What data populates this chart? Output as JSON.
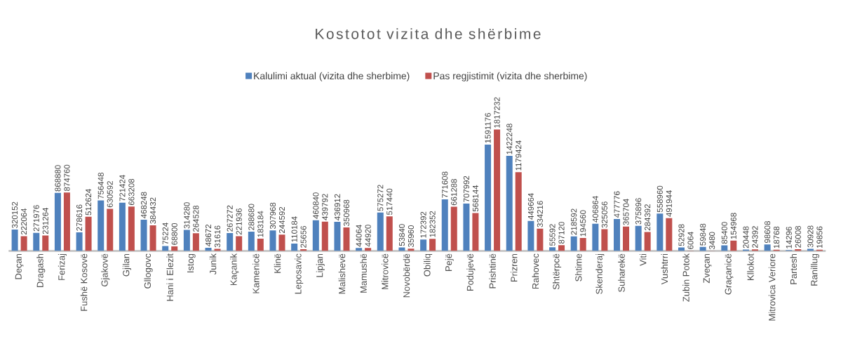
{
  "chart_data": {
    "type": "bar",
    "title": "Kostotot vizita dhe shërbime",
    "categories": [
      "Deçan",
      "Dragash",
      "Ferizaj",
      "Fushë Kosovë",
      "Gjakovë",
      "Gjilan",
      "Gllogovc",
      "Hani i Elezit",
      "Istog",
      "Junik",
      "Kaçanik",
      "Kamenicë",
      "Klinë",
      "Leposavic",
      "Lipjan",
      "Malishevë",
      "Mamushë",
      "Mitrovicë",
      "Novobërdë",
      "Obiliq",
      "Pejë",
      "Podujevë",
      "Prishtinë",
      "Prizren",
      "Rahovec",
      "Shtërpcë",
      "Shtime",
      "Skenderaj",
      "Suharekë",
      "Viti",
      "Vushtrri",
      "Zubin Potok",
      "Zveçan",
      "Graçanicë",
      "Kllokot",
      "Mitrovica Veriore",
      "Partesh",
      "Ranillug"
    ],
    "series": [
      {
        "name": "Kalulimi aktual (vizita dhe sherbime)",
        "color": "#4f81bd",
        "values": [
          320152,
          271976,
          868880,
          278616,
          756448,
          721424,
          468248,
          75224,
          314280,
          48672,
          267272,
          288680,
          307968,
          110184,
          460840,
          436912,
          44064,
          575272,
          53840,
          172392,
          771608,
          707992,
          1591176,
          1422248,
          449664,
          55592,
          218592,
          406864,
          477776,
          375896,
          558960,
          52928,
          59848,
          85400,
          20448,
          98608,
          14296,
          30928
        ]
      },
      {
        "name": "Pas regjistimit (vizita dhe sherbime)",
        "color": "#c0504d",
        "values": [
          222064,
          231264,
          874760,
          512624,
          630592,
          663208,
          384432,
          68800,
          264528,
          31616,
          221936,
          183184,
          244592,
          25656,
          439792,
          350968,
          44920,
          517440,
          35960,
          182352,
          661288,
          568144,
          1817232,
          1179424,
          334216,
          87120,
          194560,
          325056,
          365704,
          284392,
          491944,
          6064,
          3480,
          154968,
          24392,
          18768,
          26008,
          19856
        ]
      }
    ],
    "data_labels": true,
    "legend": "top"
  }
}
